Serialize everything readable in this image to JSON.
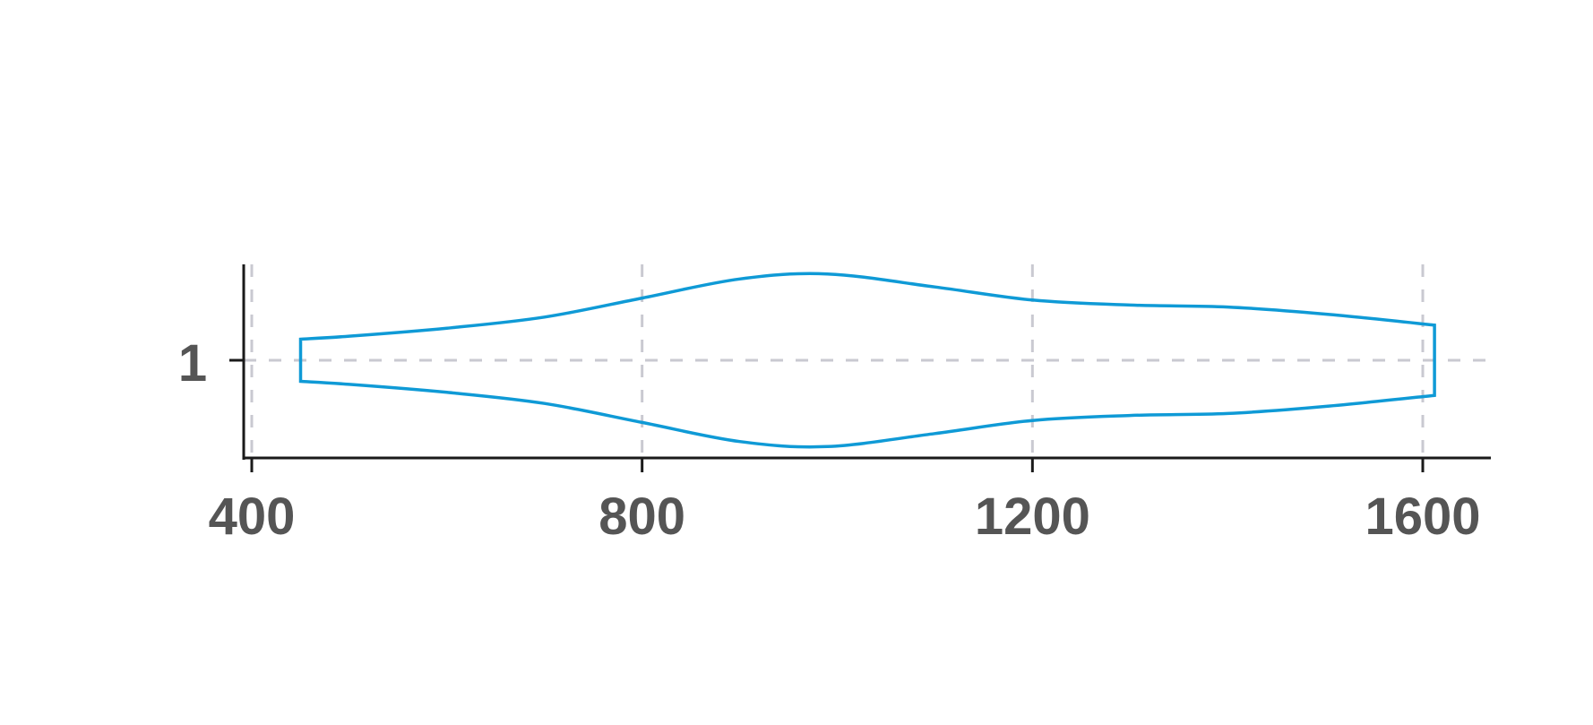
{
  "chart_data": {
    "type": "violin",
    "orientation": "horizontal",
    "categories": [
      "1"
    ],
    "xlim": [
      395,
      1675
    ],
    "x_ticks": [
      400,
      800,
      1200,
      1600
    ],
    "x_tick_labels": [
      "400",
      "800",
      "1200",
      "1600"
    ],
    "y_tick_labels": [
      "1"
    ],
    "grid": "dashed",
    "series": [
      {
        "category": "1",
        "min": 450,
        "max": 1612,
        "color": "#0f9ad6",
        "density_x": [
          450,
          500,
          600,
          700,
          800,
          900,
          990,
          1100,
          1200,
          1300,
          1400,
          1500,
          1612
        ],
        "density": [
          0.21,
          0.24,
          0.32,
          0.43,
          0.62,
          0.81,
          0.86,
          0.73,
          0.6,
          0.55,
          0.53,
          0.46,
          0.35
        ]
      }
    ]
  }
}
